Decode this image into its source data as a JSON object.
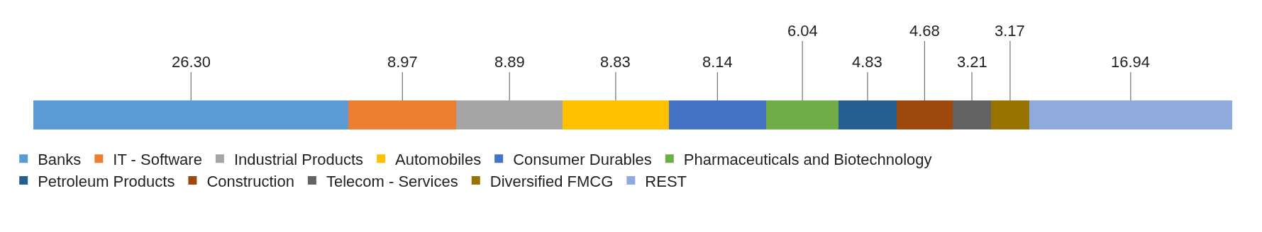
{
  "chart_data": {
    "type": "bar",
    "stacked": true,
    "orientation": "horizontal",
    "legend": "bottom",
    "categories": [
      null
    ],
    "series": [
      {
        "name": "Banks",
        "color": "#5b9bd5",
        "values": [
          26.3
        ],
        "value_labels": [
          "26.30"
        ]
      },
      {
        "name": "IT - Software",
        "color": "#ed7d31",
        "values": [
          8.97
        ],
        "value_labels": [
          "8.97"
        ]
      },
      {
        "name": "Industrial Products",
        "color": "#a5a5a5",
        "values": [
          8.89
        ],
        "value_labels": [
          "8.89"
        ]
      },
      {
        "name": "Automobiles",
        "color": "#ffc000",
        "values": [
          8.83
        ],
        "value_labels": [
          "8.83"
        ]
      },
      {
        "name": "Consumer Durables",
        "color": "#4472c4",
        "values": [
          8.14
        ],
        "value_labels": [
          "8.14"
        ]
      },
      {
        "name": "Pharmaceuticals and Biotechnology",
        "color": "#70ad47",
        "values": [
          6.04
        ],
        "value_labels": [
          "6.04"
        ]
      },
      {
        "name": "Petroleum Products",
        "color": "#255e91",
        "values": [
          4.83
        ],
        "value_labels": [
          "4.83"
        ]
      },
      {
        "name": "Construction",
        "color": "#9e480e",
        "values": [
          4.68
        ],
        "value_labels": [
          "4.68"
        ]
      },
      {
        "name": "Telecom - Services",
        "color": "#636363",
        "values": [
          3.21
        ],
        "value_labels": [
          "3.21"
        ]
      },
      {
        "name": "Diversified FMCG",
        "color": "#997300",
        "values": [
          3.17
        ],
        "value_labels": [
          "3.17"
        ]
      },
      {
        "name": "REST",
        "color": "#8faadc",
        "values": [
          16.94
        ],
        "value_labels": [
          "16.94"
        ]
      }
    ]
  }
}
